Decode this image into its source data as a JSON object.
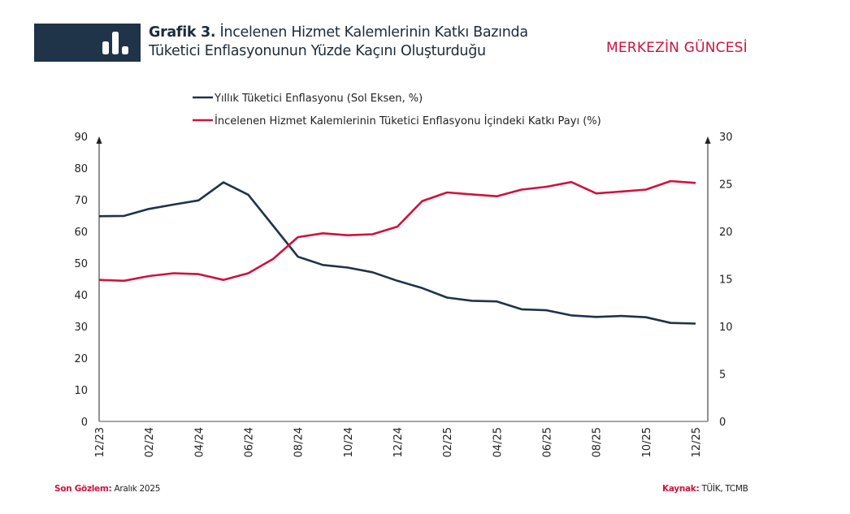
{
  "header": {
    "title_prefix": "Grafik 3.",
    "title_line1": "İncelenen Hizmet Kalemlerinin Katkı Bazında",
    "title_line2": "Tüketici Enflasyonunun Yüzde Kaçını Oluşturduğu",
    "brand": "MERKEZİN GÜNCESİ",
    "icon": "bar-chart-icon"
  },
  "footer": {
    "last_obs_label": "Son Gözlem:",
    "last_obs_value": "Aralık 2025",
    "source_label": "Kaynak:",
    "source_value": "TÜİK, TCMB"
  },
  "chart_data": {
    "type": "line",
    "x": [
      "12/23",
      "01/24",
      "02/24",
      "03/24",
      "04/24",
      "05/24",
      "06/24",
      "07/24",
      "08/24",
      "09/24",
      "10/24",
      "11/24",
      "12/24",
      "01/25",
      "02/25",
      "03/25",
      "04/25",
      "05/25",
      "06/25",
      "07/25",
      "08/25",
      "09/25",
      "10/25",
      "11/25",
      "12/25"
    ],
    "x_tick_labels": [
      "12/23",
      "02/24",
      "04/24",
      "06/24",
      "08/24",
      "10/24",
      "12/24",
      "02/25",
      "04/25",
      "06/25",
      "08/25",
      "10/25",
      "12/25"
    ],
    "y_left": {
      "lim": [
        0,
        90
      ],
      "ticks": [
        0,
        10,
        20,
        30,
        40,
        50,
        60,
        70,
        80,
        90
      ]
    },
    "y_right": {
      "lim": [
        0,
        30
      ],
      "ticks": [
        0,
        5,
        10,
        15,
        20,
        25,
        30
      ]
    },
    "grid": false,
    "legend_position": "top",
    "series": [
      {
        "name": "Yıllık Tüketici Enflasyonu (Sol Eksen, %)",
        "axis": "left",
        "color": "#1f3349",
        "values": [
          64.8,
          64.9,
          67.1,
          68.5,
          69.8,
          75.5,
          71.6,
          61.8,
          52.0,
          49.4,
          48.6,
          47.1,
          44.4,
          42.1,
          39.1,
          38.1,
          37.9,
          35.4,
          35.1,
          33.5,
          33.0,
          33.3,
          32.9,
          31.1,
          30.9
        ]
      },
      {
        "name": "İncelenen Hizmet Kalemlerinin Tüketici Enflasyonu İçindeki Katkı Payı (%)",
        "axis": "right",
        "color": "#d0123c",
        "values": [
          14.9,
          14.8,
          15.3,
          15.6,
          15.5,
          14.9,
          15.6,
          17.1,
          19.4,
          19.8,
          19.6,
          19.7,
          20.5,
          23.2,
          24.1,
          23.9,
          23.7,
          24.4,
          24.7,
          25.2,
          24.0,
          24.2,
          24.4,
          25.3,
          25.1
        ]
      }
    ]
  }
}
